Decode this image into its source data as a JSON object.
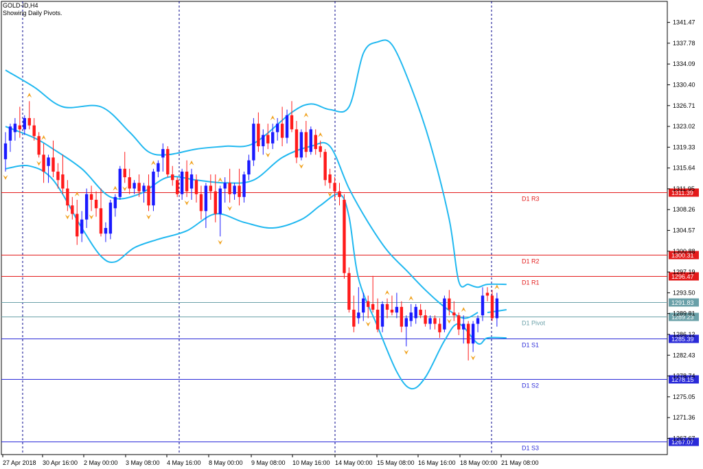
{
  "header": {
    "symbol": "GOLD-ID,H4",
    "subtitle": "Showing Daily Pivots."
  },
  "colors": {
    "bull": "#1a1aff",
    "bear": "#ff1a1a",
    "band": "#20b8f0",
    "resistance": "#e31a1a",
    "support": "#2a2ad8",
    "pivot": "#6aa0a8",
    "fractal": "#f0a21e",
    "grid": "#00008b"
  },
  "chart_data": {
    "type": "candlestick",
    "ylim": [
      1264.8,
      1345.2
    ],
    "y_ticks": [
      "1341.47",
      "1337.78",
      "1334.09",
      "1330.40",
      "1326.71",
      "1323.02",
      "1319.33",
      "1315.64",
      "1311.95",
      "1308.26",
      "1304.57",
      "1300.88",
      "1297.19",
      "1293.50",
      "1289.81",
      "1286.12",
      "1282.43",
      "1278.74",
      "1275.05",
      "1271.36",
      "1267.67"
    ],
    "x_labels": [
      "27 Apr 2018",
      "30 Apr 16:00",
      "2 May 00:00",
      "3 May 08:00",
      "4 May 16:00",
      "8 May 00:00",
      "9 May 08:00",
      "10 May 16:00",
      "14 May 00:00",
      "15 May 08:00",
      "16 May 16:00",
      "18 May 00:00",
      "21 May 08:00"
    ],
    "pivot_levels": [
      {
        "name": "D1 R3",
        "value": 1311.39,
        "label": "1311.39",
        "kind": "resistance"
      },
      {
        "name": "D1 R2",
        "value": 1300.31,
        "label": "1300.31",
        "kind": "resistance"
      },
      {
        "name": "D1 R1",
        "value": 1296.47,
        "label": "1296.47",
        "kind": "resistance"
      },
      {
        "name": "",
        "value": 1291.83,
        "label": "1291.83",
        "kind": "pivot"
      },
      {
        "name": "D1 Pivot",
        "value": 1289.23,
        "label": "1289.23",
        "kind": "pivot"
      },
      {
        "name": "D1 S1",
        "value": 1285.39,
        "label": "1285.39",
        "kind": "support"
      },
      {
        "name": "D1 S2",
        "value": 1278.15,
        "label": "1278.15",
        "kind": "support"
      },
      {
        "name": "D1 S3",
        "value": 1267.07,
        "label": "1267.07",
        "kind": "support"
      }
    ],
    "candles": [
      {
        "o": 1317.2,
        "h": 1322.0,
        "l": 1315.0,
        "c": 1320.0
      },
      {
        "o": 1320.5,
        "h": 1323.5,
        "l": 1318.5,
        "c": 1323.0
      },
      {
        "o": 1322.0,
        "h": 1324.5,
        "l": 1320.5,
        "c": 1323.5
      },
      {
        "o": 1323.2,
        "h": 1326.5,
        "l": 1321.0,
        "c": 1322.5
      },
      {
        "o": 1322.5,
        "h": 1325.0,
        "l": 1321.5,
        "c": 1324.5
      },
      {
        "o": 1324.5,
        "h": 1327.5,
        "l": 1322.5,
        "c": 1323.2
      },
      {
        "o": 1323.2,
        "h": 1324.5,
        "l": 1320.5,
        "c": 1321.3
      },
      {
        "o": 1321.3,
        "h": 1322.0,
        "l": 1317.5,
        "c": 1318.0
      },
      {
        "o": 1318.0,
        "h": 1320.0,
        "l": 1313.0,
        "c": 1315.0
      },
      {
        "o": 1316.0,
        "h": 1318.0,
        "l": 1313.0,
        "c": 1317.5
      },
      {
        "o": 1317.5,
        "h": 1320.5,
        "l": 1314.0,
        "c": 1315.0
      },
      {
        "o": 1315.0,
        "h": 1316.5,
        "l": 1312.0,
        "c": 1313.5
      },
      {
        "o": 1314.5,
        "h": 1318.0,
        "l": 1311.0,
        "c": 1312.0
      },
      {
        "o": 1312.0,
        "h": 1313.5,
        "l": 1308.0,
        "c": 1309.0
      },
      {
        "o": 1309.0,
        "h": 1310.5,
        "l": 1306.5,
        "c": 1307.5
      },
      {
        "o": 1307.5,
        "h": 1310.0,
        "l": 1302.0,
        "c": 1303.5
      },
      {
        "o": 1304.0,
        "h": 1308.0,
        "l": 1302.5,
        "c": 1306.5
      },
      {
        "o": 1306.5,
        "h": 1312.0,
        "l": 1305.0,
        "c": 1311.0
      },
      {
        "o": 1311.0,
        "h": 1312.5,
        "l": 1308.0,
        "c": 1310.0
      },
      {
        "o": 1310.0,
        "h": 1311.5,
        "l": 1307.0,
        "c": 1308.5
      },
      {
        "o": 1308.5,
        "h": 1312.0,
        "l": 1303.5,
        "c": 1304.0
      },
      {
        "o": 1304.0,
        "h": 1306.0,
        "l": 1302.5,
        "c": 1305.0
      },
      {
        "o": 1304.0,
        "h": 1310.0,
        "l": 1303.0,
        "c": 1309.5
      },
      {
        "o": 1308.5,
        "h": 1311.0,
        "l": 1307.0,
        "c": 1310.5
      },
      {
        "o": 1310.5,
        "h": 1316.0,
        "l": 1310.0,
        "c": 1315.5
      },
      {
        "o": 1315.5,
        "h": 1318.5,
        "l": 1313.0,
        "c": 1314.0
      },
      {
        "o": 1314.0,
        "h": 1315.5,
        "l": 1311.0,
        "c": 1312.0
      },
      {
        "o": 1312.0,
        "h": 1313.5,
        "l": 1311.0,
        "c": 1313.0
      },
      {
        "o": 1313.0,
        "h": 1314.5,
        "l": 1310.5,
        "c": 1311.5
      },
      {
        "o": 1311.5,
        "h": 1313.0,
        "l": 1309.5,
        "c": 1312.5
      },
      {
        "o": 1312.5,
        "h": 1314.5,
        "l": 1308.0,
        "c": 1309.0
      },
      {
        "o": 1309.0,
        "h": 1315.5,
        "l": 1308.0,
        "c": 1315.0
      },
      {
        "o": 1315.0,
        "h": 1317.0,
        "l": 1314.0,
        "c": 1316.5
      },
      {
        "o": 1317.5,
        "h": 1320.0,
        "l": 1315.0,
        "c": 1319.0
      },
      {
        "o": 1319.0,
        "h": 1319.5,
        "l": 1314.0,
        "c": 1314.5
      },
      {
        "o": 1314.5,
        "h": 1316.0,
        "l": 1312.5,
        "c": 1313.5
      },
      {
        "o": 1313.5,
        "h": 1314.0,
        "l": 1310.5,
        "c": 1311.0
      },
      {
        "o": 1311.0,
        "h": 1315.5,
        "l": 1310.0,
        "c": 1315.0
      },
      {
        "o": 1315.0,
        "h": 1317.0,
        "l": 1310.5,
        "c": 1311.5
      },
      {
        "o": 1312.0,
        "h": 1315.5,
        "l": 1310.0,
        "c": 1314.5
      },
      {
        "o": 1313.5,
        "h": 1314.5,
        "l": 1309.5,
        "c": 1311.0
      },
      {
        "o": 1311.0,
        "h": 1312.5,
        "l": 1306.5,
        "c": 1308.0
      },
      {
        "o": 1308.0,
        "h": 1313.0,
        "l": 1305.0,
        "c": 1312.5
      },
      {
        "o": 1312.5,
        "h": 1314.5,
        "l": 1310.0,
        "c": 1311.5
      },
      {
        "o": 1311.5,
        "h": 1314.5,
        "l": 1306.0,
        "c": 1307.5
      },
      {
        "o": 1307.5,
        "h": 1312.5,
        "l": 1303.5,
        "c": 1312.0
      },
      {
        "o": 1312.0,
        "h": 1314.0,
        "l": 1309.5,
        "c": 1313.0
      },
      {
        "o": 1313.0,
        "h": 1315.5,
        "l": 1309.5,
        "c": 1311.0
      },
      {
        "o": 1311.0,
        "h": 1313.0,
        "l": 1310.0,
        "c": 1312.5
      },
      {
        "o": 1312.5,
        "h": 1315.5,
        "l": 1309.0,
        "c": 1310.5
      },
      {
        "o": 1310.5,
        "h": 1315.0,
        "l": 1309.5,
        "c": 1314.5
      },
      {
        "o": 1314.5,
        "h": 1318.0,
        "l": 1313.5,
        "c": 1317.0
      },
      {
        "o": 1317.0,
        "h": 1324.5,
        "l": 1316.0,
        "c": 1323.5
      },
      {
        "o": 1323.5,
        "h": 1325.5,
        "l": 1318.5,
        "c": 1319.5
      },
      {
        "o": 1319.5,
        "h": 1322.5,
        "l": 1318.0,
        "c": 1321.5
      },
      {
        "o": 1321.5,
        "h": 1323.5,
        "l": 1319.0,
        "c": 1320.0
      },
      {
        "o": 1320.0,
        "h": 1323.5,
        "l": 1319.0,
        "c": 1322.0
      },
      {
        "o": 1322.0,
        "h": 1324.5,
        "l": 1320.5,
        "c": 1323.5
      },
      {
        "o": 1323.5,
        "h": 1326.5,
        "l": 1319.5,
        "c": 1321.0
      },
      {
        "o": 1321.0,
        "h": 1326.0,
        "l": 1320.0,
        "c": 1325.0
      },
      {
        "o": 1325.0,
        "h": 1327.5,
        "l": 1322.0,
        "c": 1322.5
      },
      {
        "o": 1322.5,
        "h": 1324.0,
        "l": 1316.5,
        "c": 1317.5
      },
      {
        "o": 1317.5,
        "h": 1322.5,
        "l": 1317.0,
        "c": 1322.0
      },
      {
        "o": 1322.0,
        "h": 1324.0,
        "l": 1317.5,
        "c": 1318.5
      },
      {
        "o": 1318.5,
        "h": 1323.0,
        "l": 1318.0,
        "c": 1322.5
      },
      {
        "o": 1321.5,
        "h": 1322.5,
        "l": 1318.0,
        "c": 1319.0
      },
      {
        "o": 1319.5,
        "h": 1320.5,
        "l": 1317.5,
        "c": 1318.5
      },
      {
        "o": 1318.5,
        "h": 1319.0,
        "l": 1312.5,
        "c": 1313.5
      },
      {
        "o": 1314.5,
        "h": 1315.5,
        "l": 1312.0,
        "c": 1313.0
      },
      {
        "o": 1313.0,
        "h": 1314.0,
        "l": 1310.0,
        "c": 1311.5
      },
      {
        "o": 1311.5,
        "h": 1313.0,
        "l": 1309.0,
        "c": 1310.5
      },
      {
        "o": 1310.0,
        "h": 1311.0,
        "l": 1296.0,
        "c": 1297.0
      },
      {
        "o": 1297.0,
        "h": 1298.0,
        "l": 1290.0,
        "c": 1290.5
      },
      {
        "o": 1290.5,
        "h": 1293.0,
        "l": 1286.5,
        "c": 1287.5
      },
      {
        "o": 1289.0,
        "h": 1294.5,
        "l": 1288.0,
        "c": 1290.0
      },
      {
        "o": 1290.0,
        "h": 1293.5,
        "l": 1288.5,
        "c": 1292.5
      },
      {
        "o": 1292.0,
        "h": 1293.0,
        "l": 1289.0,
        "c": 1291.0
      },
      {
        "o": 1291.5,
        "h": 1296.5,
        "l": 1290.0,
        "c": 1290.5
      },
      {
        "o": 1290.5,
        "h": 1292.5,
        "l": 1286.5,
        "c": 1287.0
      },
      {
        "o": 1287.5,
        "h": 1292.0,
        "l": 1286.5,
        "c": 1291.5
      },
      {
        "o": 1291.5,
        "h": 1292.5,
        "l": 1289.0,
        "c": 1290.5
      },
      {
        "o": 1290.5,
        "h": 1293.0,
        "l": 1289.5,
        "c": 1290.0
      },
      {
        "o": 1290.0,
        "h": 1293.5,
        "l": 1289.0,
        "c": 1291.0
      },
      {
        "o": 1291.0,
        "h": 1292.0,
        "l": 1286.5,
        "c": 1287.5
      },
      {
        "o": 1287.5,
        "h": 1289.5,
        "l": 1284.0,
        "c": 1289.0
      },
      {
        "o": 1288.5,
        "h": 1291.5,
        "l": 1287.5,
        "c": 1290.0
      },
      {
        "o": 1289.0,
        "h": 1291.5,
        "l": 1288.0,
        "c": 1291.0
      },
      {
        "o": 1290.5,
        "h": 1291.5,
        "l": 1289.0,
        "c": 1289.5
      },
      {
        "o": 1289.5,
        "h": 1290.5,
        "l": 1287.5,
        "c": 1288.0
      },
      {
        "o": 1288.0,
        "h": 1289.5,
        "l": 1287.0,
        "c": 1289.0
      },
      {
        "o": 1289.0,
        "h": 1289.5,
        "l": 1287.0,
        "c": 1288.0
      },
      {
        "o": 1288.0,
        "h": 1289.0,
        "l": 1285.5,
        "c": 1286.5
      },
      {
        "o": 1287.0,
        "h": 1293.0,
        "l": 1286.5,
        "c": 1292.5
      },
      {
        "o": 1292.5,
        "h": 1294.0,
        "l": 1289.5,
        "c": 1290.5
      },
      {
        "o": 1290.0,
        "h": 1292.0,
        "l": 1288.5,
        "c": 1289.5
      },
      {
        "o": 1289.5,
        "h": 1290.0,
        "l": 1286.0,
        "c": 1287.0
      },
      {
        "o": 1287.0,
        "h": 1289.5,
        "l": 1284.5,
        "c": 1288.0
      },
      {
        "o": 1288.0,
        "h": 1288.5,
        "l": 1281.5,
        "c": 1284.5
      },
      {
        "o": 1284.5,
        "h": 1288.5,
        "l": 1283.0,
        "c": 1288.0
      },
      {
        "o": 1288.0,
        "h": 1289.5,
        "l": 1286.5,
        "c": 1289.0
      },
      {
        "o": 1289.5,
        "h": 1294.5,
        "l": 1288.5,
        "c": 1293.0
      },
      {
        "o": 1293.5,
        "h": 1294.5,
        "l": 1292.0,
        "c": 1293.0
      },
      {
        "o": 1293.0,
        "h": 1294.0,
        "l": 1288.5,
        "c": 1289.0
      },
      {
        "o": 1289.0,
        "h": 1293.5,
        "l": 1287.5,
        "c": 1292.5
      }
    ],
    "bands": {
      "upper": [
        [
          0,
          1333.0
        ],
        [
          6,
          1330.0
        ],
        [
          12,
          1326.5
        ],
        [
          20,
          1326.5
        ],
        [
          26,
          1322.0
        ],
        [
          30,
          1318.5
        ],
        [
          34,
          1318.0
        ],
        [
          40,
          1319.0
        ],
        [
          46,
          1319.5
        ],
        [
          52,
          1320.0
        ],
        [
          60,
          1325.5
        ],
        [
          64,
          1327.0
        ],
        [
          68,
          1326.0
        ],
        [
          72,
          1326.5
        ],
        [
          75,
          1336.0
        ],
        [
          78,
          1338.0
        ],
        [
          81,
          1337.5
        ],
        [
          85,
          1330.0
        ],
        [
          89,
          1320.0
        ],
        [
          93,
          1306.5
        ],
        [
          95,
          1295.5
        ],
        [
          97,
          1295.0
        ],
        [
          99,
          1294.5
        ],
        [
          101,
          1295.0
        ],
        [
          105,
          1295.0
        ]
      ],
      "middle": [
        [
          0,
          1323.0
        ],
        [
          6,
          1321.0
        ],
        [
          10,
          1319.0
        ],
        [
          16,
          1315.5
        ],
        [
          22,
          1310.5
        ],
        [
          28,
          1311.0
        ],
        [
          34,
          1314.0
        ],
        [
          40,
          1313.5
        ],
        [
          46,
          1313.0
        ],
        [
          52,
          1313.5
        ],
        [
          58,
          1317.5
        ],
        [
          64,
          1319.5
        ],
        [
          68,
          1319.5
        ],
        [
          72,
          1312.0
        ],
        [
          76,
          1306.0
        ],
        [
          80,
          1301.0
        ],
        [
          84,
          1297.5
        ],
        [
          88,
          1294.0
        ],
        [
          92,
          1291.0
        ],
        [
          96,
          1289.0
        ],
        [
          99,
          1290.0
        ],
        [
          101,
          1290.0
        ],
        [
          105,
          1290.5
        ]
      ],
      "middle_split_after": 99,
      "lower": [
        [
          0,
          1315.5
        ],
        [
          5,
          1316.0
        ],
        [
          10,
          1313.5
        ],
        [
          16,
          1305.0
        ],
        [
          20,
          1300.0
        ],
        [
          23,
          1299.0
        ],
        [
          27,
          1301.5
        ],
        [
          32,
          1303.0
        ],
        [
          38,
          1304.5
        ],
        [
          44,
          1307.5
        ],
        [
          50,
          1306.0
        ],
        [
          56,
          1305.0
        ],
        [
          62,
          1306.5
        ],
        [
          66,
          1309.0
        ],
        [
          70,
          1311.0
        ],
        [
          72,
          1307.0
        ],
        [
          74,
          1296.0
        ],
        [
          78,
          1287.5
        ],
        [
          82,
          1279.5
        ],
        [
          85,
          1276.5
        ],
        [
          88,
          1278.5
        ],
        [
          92,
          1285.0
        ],
        [
          95,
          1288.0
        ],
        [
          99,
          1284.5
        ],
        [
          101,
          1285.5
        ],
        [
          105,
          1285.5
        ]
      ]
    },
    "fractals_up": [
      5,
      8,
      15,
      23,
      31,
      39,
      45,
      56,
      63,
      66,
      80,
      85,
      96,
      103
    ],
    "fractals_down": [
      0,
      7,
      13,
      18,
      25,
      30,
      38,
      45,
      47,
      55,
      62,
      68,
      76,
      84,
      93,
      98
    ]
  }
}
